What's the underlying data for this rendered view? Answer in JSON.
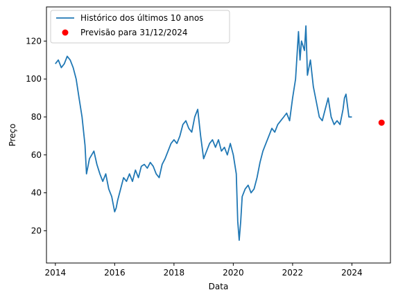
{
  "chart_data": {
    "type": "line",
    "title": "",
    "xlabel": "Data",
    "ylabel": "Preço",
    "xlim": [
      2013.7,
      2025.3
    ],
    "ylim": [
      3,
      138
    ],
    "x_ticks": [
      2014,
      2016,
      2018,
      2020,
      2022,
      2024
    ],
    "x_tick_labels": [
      "2014",
      "2016",
      "2018",
      "2020",
      "2022",
      "2024"
    ],
    "y_ticks": [
      20,
      40,
      60,
      80,
      100,
      120
    ],
    "y_tick_labels": [
      "20",
      "40",
      "60",
      "80",
      "100",
      "120"
    ],
    "grid": false,
    "legend_position": "top-left",
    "series": [
      {
        "name": "Histórico dos últimos 10 anos",
        "color": "#1f77b4",
        "kind": "line",
        "x": [
          2014.0,
          2014.1,
          2014.2,
          2014.3,
          2014.4,
          2014.5,
          2014.6,
          2014.7,
          2014.8,
          2014.9,
          2015.0,
          2015.05,
          2015.15,
          2015.3,
          2015.4,
          2015.5,
          2015.6,
          2015.7,
          2015.8,
          2015.9,
          2016.0,
          2016.05,
          2016.1,
          2016.2,
          2016.3,
          2016.4,
          2016.5,
          2016.6,
          2016.7,
          2016.8,
          2016.9,
          2017.0,
          2017.1,
          2017.2,
          2017.3,
          2017.4,
          2017.5,
          2017.6,
          2017.7,
          2017.8,
          2017.9,
          2018.0,
          2018.1,
          2018.2,
          2018.3,
          2018.4,
          2018.5,
          2018.6,
          2018.7,
          2018.8,
          2018.9,
          2019.0,
          2019.1,
          2019.2,
          2019.3,
          2019.4,
          2019.5,
          2019.6,
          2019.7,
          2019.8,
          2019.9,
          2020.0,
          2020.1,
          2020.15,
          2020.2,
          2020.25,
          2020.3,
          2020.4,
          2020.5,
          2020.6,
          2020.7,
          2020.8,
          2020.9,
          2021.0,
          2021.1,
          2021.2,
          2021.3,
          2021.4,
          2021.5,
          2021.6,
          2021.7,
          2021.8,
          2021.9,
          2022.0,
          2022.1,
          2022.2,
          2022.25,
          2022.3,
          2022.4,
          2022.45,
          2022.5,
          2022.6,
          2022.7,
          2022.8,
          2022.9,
          2023.0,
          2023.1,
          2023.2,
          2023.3,
          2023.4,
          2023.5,
          2023.6,
          2023.7,
          2023.75,
          2023.8,
          2023.9,
          2024.0
        ],
        "y": [
          108,
          110,
          106,
          108,
          112,
          110,
          106,
          100,
          90,
          80,
          65,
          50,
          58,
          62,
          55,
          50,
          46,
          50,
          42,
          38,
          30,
          32,
          36,
          42,
          48,
          46,
          50,
          46,
          52,
          48,
          54,
          55,
          53,
          56,
          54,
          50,
          48,
          55,
          58,
          62,
          66,
          68,
          66,
          70,
          76,
          78,
          74,
          72,
          80,
          84,
          70,
          58,
          62,
          66,
          68,
          64,
          68,
          62,
          64,
          60,
          66,
          60,
          50,
          25,
          15,
          25,
          38,
          42,
          44,
          40,
          42,
          48,
          56,
          62,
          66,
          70,
          74,
          72,
          76,
          78,
          80,
          82,
          78,
          90,
          100,
          125,
          110,
          120,
          115,
          128,
          102,
          110,
          96,
          88,
          80,
          78,
          84,
          90,
          80,
          76,
          78,
          76,
          84,
          90,
          92,
          80,
          80
        ]
      },
      {
        "name": "Previsão para 31/12/2024",
        "color": "#ff0000",
        "kind": "scatter",
        "x": [
          2025.0
        ],
        "y": [
          77
        ]
      }
    ]
  }
}
